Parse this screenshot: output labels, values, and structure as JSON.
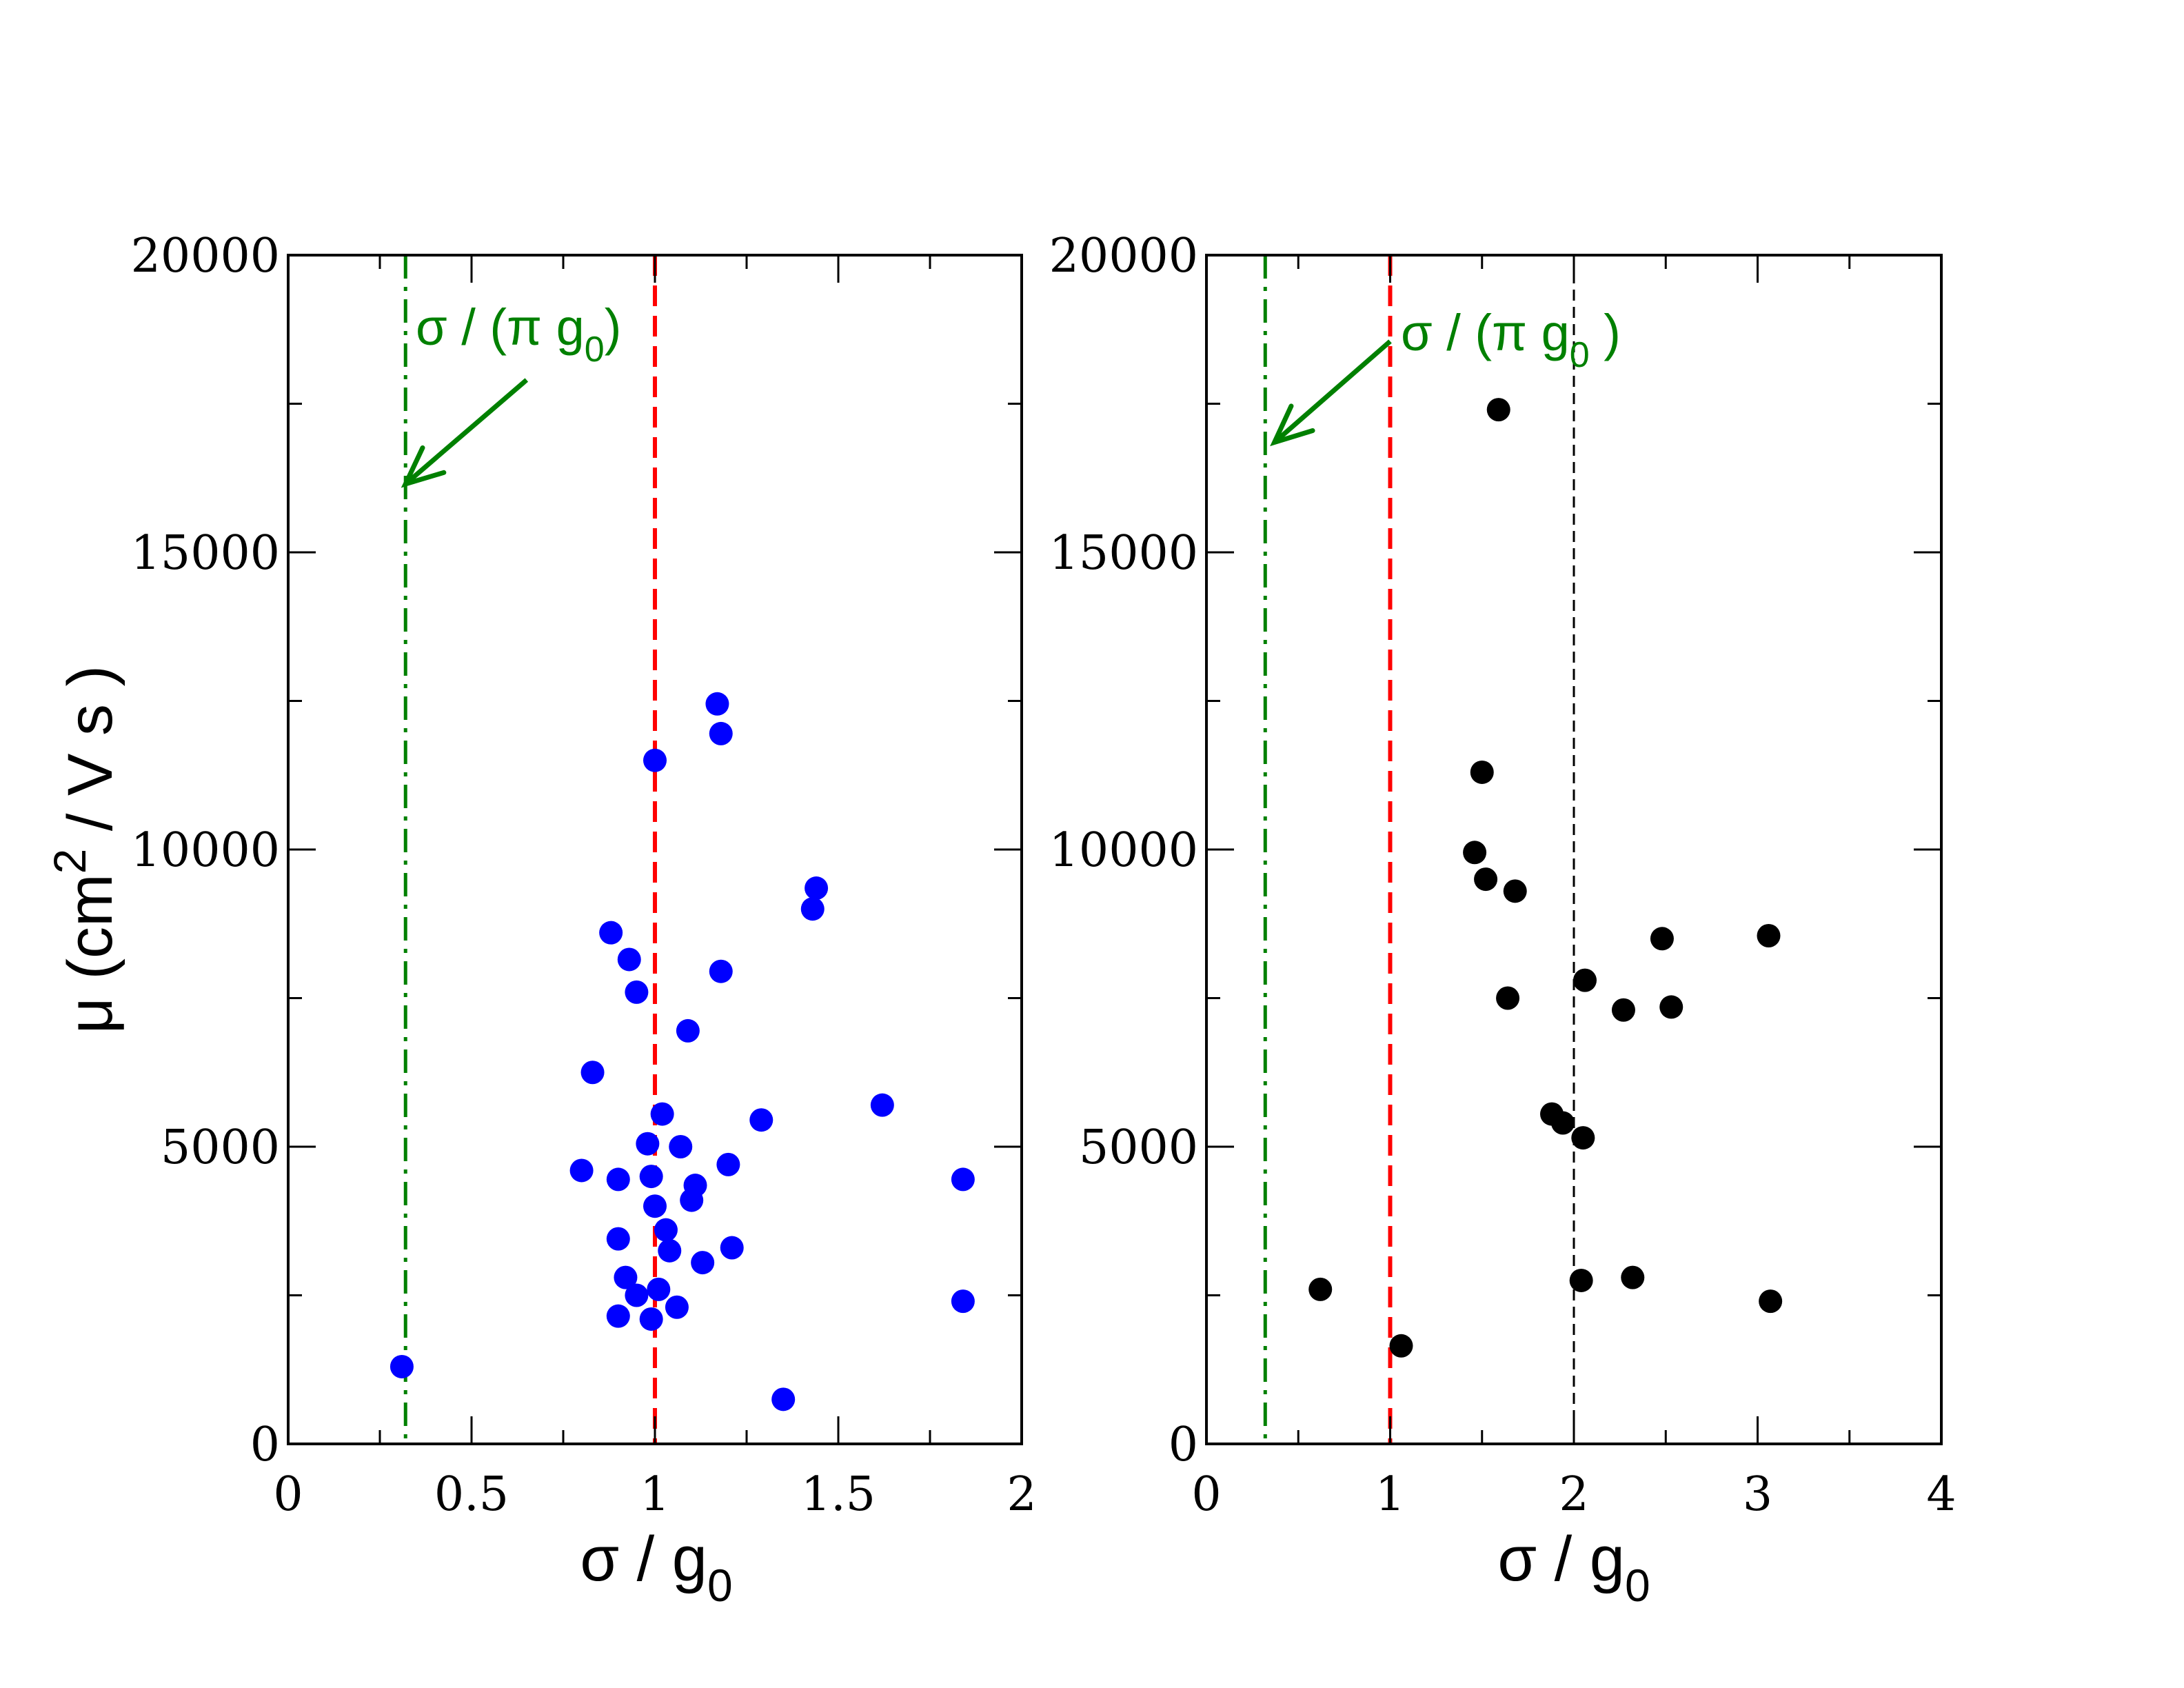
{
  "chart_data": [
    {
      "type": "scatter",
      "panel": "left",
      "title": "",
      "xlabel": "σ / g",
      "xlabel_sub": "0",
      "ylabel": "μ (cm",
      "ylabel_sup": "2",
      "ylabel_tail": " / V s )",
      "xlim": [
        0,
        2
      ],
      "ylim": [
        0,
        20000
      ],
      "xticks": [
        0,
        0.5,
        1,
        1.5,
        2
      ],
      "xtick_labels": [
        "0",
        "0.5",
        "1",
        "1.5",
        "2"
      ],
      "yticks": [
        0,
        5000,
        10000,
        15000,
        20000
      ],
      "ytick_labels": [
        "0",
        "5000",
        "10000",
        "15000",
        "20000"
      ],
      "x_minor_step": 0.25,
      "y_minor_step": 2500,
      "marker_color": "#0000ff",
      "vlines": [
        {
          "name": "sigma-over-pi-g0-line",
          "x": 0.32,
          "color": "#008000",
          "style": "dashdot"
        },
        {
          "name": "sigma-over-g0-line",
          "x": 1.0,
          "color": "#ff0000",
          "style": "dashed"
        }
      ],
      "annotation": {
        "text_main": "σ / (π g",
        "text_sub": "0",
        "text_close": ")",
        "arrow_from": [
          0.65,
          17900
        ],
        "arrow_to": [
          0.32,
          16150
        ],
        "color": "#008000"
      },
      "series": [
        {
          "name": "samples",
          "points": [
            [
              0.31,
              1300
            ],
            [
              0.8,
              4600
            ],
            [
              0.83,
              6250
            ],
            [
              0.88,
              8600
            ],
            [
              0.9,
              4450
            ],
            [
              0.9,
              3450
            ],
            [
              0.9,
              2150
            ],
            [
              0.92,
              2800
            ],
            [
              0.93,
              8150
            ],
            [
              0.95,
              7600
            ],
            [
              0.95,
              2500
            ],
            [
              0.98,
              5050
            ],
            [
              0.99,
              4500
            ],
            [
              0.99,
              2100
            ],
            [
              1.0,
              11500
            ],
            [
              1.0,
              4000
            ],
            [
              1.01,
              2600
            ],
            [
              1.02,
              5550
            ],
            [
              1.03,
              3600
            ],
            [
              1.04,
              3250
            ],
            [
              1.06,
              2300
            ],
            [
              1.07,
              5000
            ],
            [
              1.09,
              6950
            ],
            [
              1.1,
              4100
            ],
            [
              1.11,
              4350
            ],
            [
              1.13,
              3050
            ],
            [
              1.17,
              12450
            ],
            [
              1.18,
              11950
            ],
            [
              1.18,
              7950
            ],
            [
              1.2,
              4700
            ],
            [
              1.21,
              3300
            ],
            [
              1.29,
              5450
            ],
            [
              1.35,
              750
            ],
            [
              1.43,
              9000
            ],
            [
              1.44,
              9350
            ],
            [
              1.62,
              5700
            ],
            [
              1.84,
              4450
            ],
            [
              1.84,
              2400
            ]
          ]
        }
      ]
    },
    {
      "type": "scatter",
      "panel": "right",
      "title": "",
      "xlabel": "σ / g",
      "xlabel_sub": "0",
      "xlim": [
        0,
        4
      ],
      "ylim": [
        0,
        20000
      ],
      "xticks": [
        0,
        1,
        2,
        3,
        4
      ],
      "xtick_labels": [
        "0",
        "1",
        "2",
        "3",
        "4"
      ],
      "yticks": [
        0,
        5000,
        10000,
        15000,
        20000
      ],
      "ytick_labels": [
        "0",
        "5000",
        "10000",
        "15000",
        "20000"
      ],
      "x_minor_step": 0.5,
      "y_minor_step": 2500,
      "marker_color": "#000000",
      "vlines": [
        {
          "name": "sigma-over-pi-g0-line",
          "x": 0.32,
          "color": "#008000",
          "style": "dashdot"
        },
        {
          "name": "sigma-over-g0-line",
          "x": 1.0,
          "color": "#ff0000",
          "style": "dashed"
        },
        {
          "name": "two-sigma-reference-line",
          "x": 2.0,
          "color": "#000000",
          "style": "thin-dashed"
        }
      ],
      "annotation": {
        "text_main": "σ / (π g",
        "text_sub": "0",
        "text_close": " )",
        "arrow_from": [
          1.0,
          18550
        ],
        "arrow_to": [
          0.37,
          16850
        ],
        "color": "#008000"
      },
      "series": [
        {
          "name": "samples",
          "points": [
            [
              0.62,
              2600
            ],
            [
              1.06,
              1650
            ],
            [
              1.46,
              9950
            ],
            [
              1.5,
              11300
            ],
            [
              1.52,
              9500
            ],
            [
              1.59,
              17400
            ],
            [
              1.64,
              7500
            ],
            [
              1.68,
              9300
            ],
            [
              1.88,
              5550
            ],
            [
              1.94,
              5400
            ],
            [
              2.04,
              2750
            ],
            [
              2.05,
              5150
            ],
            [
              2.06,
              7800
            ],
            [
              2.27,
              7300
            ],
            [
              2.32,
              2800
            ],
            [
              2.48,
              8500
            ],
            [
              2.53,
              7350
            ],
            [
              3.06,
              8550
            ],
            [
              3.07,
              2400
            ]
          ]
        }
      ]
    }
  ]
}
